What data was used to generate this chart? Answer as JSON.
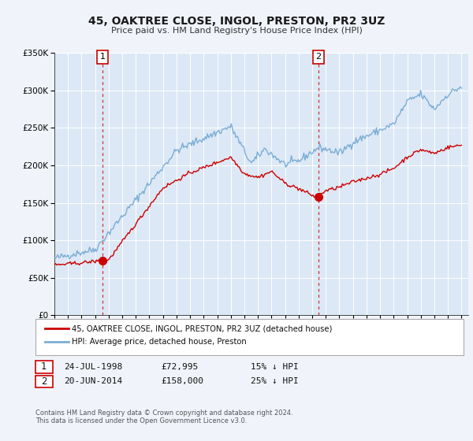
{
  "title": "45, OAKTREE CLOSE, INGOL, PRESTON, PR2 3UZ",
  "subtitle": "Price paid vs. HM Land Registry's House Price Index (HPI)",
  "red_label": "45, OAKTREE CLOSE, INGOL, PRESTON, PR2 3UZ (detached house)",
  "blue_label": "HPI: Average price, detached house, Preston",
  "marker1_date": "24-JUL-1998",
  "marker1_price": 72995,
  "marker1_text": "15% ↓ HPI",
  "marker1_year": 1998.56,
  "marker2_date": "20-JUN-2014",
  "marker2_price": 158000,
  "marker2_text": "25% ↓ HPI",
  "marker2_year": 2014.46,
  "footer1": "Contains HM Land Registry data © Crown copyright and database right 2024.",
  "footer2": "This data is licensed under the Open Government Licence v3.0.",
  "ylim": [
    0,
    350000
  ],
  "xlim_start": 1995.0,
  "xlim_end": 2025.5,
  "background_color": "#f0f4fa",
  "plot_bg_color": "#dce8f5",
  "red_color": "#cc0000",
  "blue_color": "#7aadd4",
  "grid_color": "#ffffff",
  "vline_color": "#cc3333"
}
